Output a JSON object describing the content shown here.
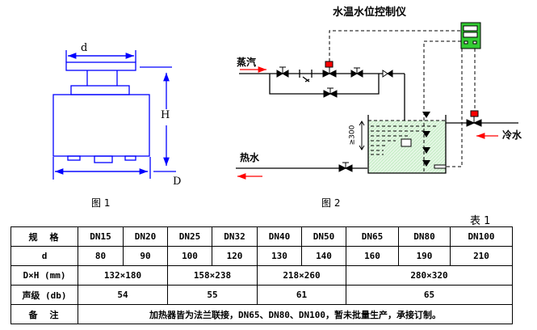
{
  "fig1": {
    "dim_d": "d",
    "dim_H": "H",
    "dim_D": "D",
    "caption": "图 1"
  },
  "fig2": {
    "title": "水温水位控制仪",
    "steam": "蒸汽",
    "hot_water": "热水",
    "cold_water": "冷水",
    "level_mark": "≥300",
    "caption": "图 2"
  },
  "colors": {
    "fig1_lines": "#0000ff",
    "controller": "#33cc33",
    "actuator": "#ff0000",
    "arrow": "#ff0000",
    "water": "#ccf0cc"
  },
  "table": {
    "caption": "表 1",
    "rows": [
      {
        "label": "规　格",
        "cells": [
          "DN15",
          "DN20",
          "DN25",
          "DN32",
          "DN40",
          "DN50",
          "DN65",
          "DN80",
          "DN100"
        ]
      },
      {
        "label": "d",
        "cells": [
          "80",
          "90",
          "100",
          "120",
          "130",
          "140",
          "160",
          "190",
          "210"
        ]
      },
      {
        "label": "D×H (mm)",
        "cells": [
          "132×180",
          "158×238",
          "218×260",
          "280×320"
        ]
      },
      {
        "label": "声级 (db)",
        "cells": [
          "54",
          "55",
          "61",
          "65"
        ]
      },
      {
        "label": "备　注",
        "cells": [
          "加热器皆为法兰联接，DN65、DN80、DN100，暂未批量生产，承接订制。"
        ]
      }
    ]
  }
}
